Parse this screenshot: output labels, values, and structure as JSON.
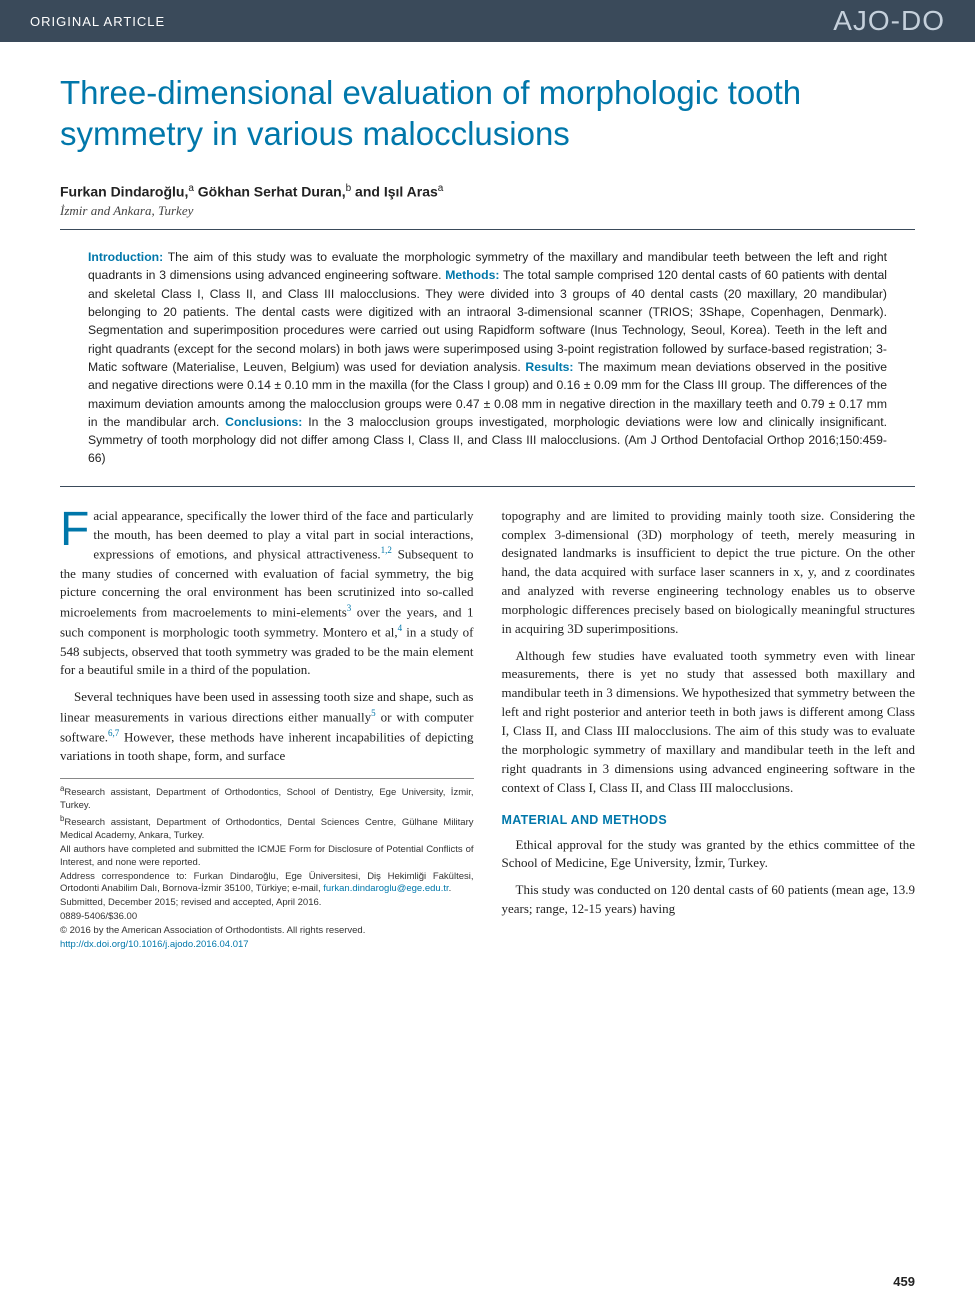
{
  "colors": {
    "topbar_bg": "#3a4a5a",
    "accent": "#0077aa",
    "logo_text": "#c5d0db",
    "body_text": "#222222",
    "background": "#ffffff"
  },
  "typography": {
    "title_fontsize": 33,
    "body_fontsize": 13,
    "abstract_fontsize": 12.2,
    "footnote_fontsize": 9.5,
    "dropcap_fontsize": 48
  },
  "header": {
    "article_type": "ORIGINAL ARTICLE",
    "journal_logo": "AJO-DO"
  },
  "title": "Three-dimensional evaluation of morphologic tooth symmetry in various malocclusions",
  "authors_html": "Furkan Dindaroğlu,<sup>a</sup> Gökhan Serhat Duran,<sup>b</sup> and Işıl Aras<sup>a</sup>",
  "affiliation_line": "İzmir and Ankara, Turkey",
  "abstract": {
    "intro_label": "Introduction:",
    "intro": "The aim of this study was to evaluate the morphologic symmetry of the maxillary and mandibular teeth between the left and right quadrants in 3 dimensions using advanced engineering software.",
    "methods_label": "Methods:",
    "methods": "The total sample comprised 120 dental casts of 60 patients with dental and skeletal Class I, Class II, and Class III malocclusions. They were divided into 3 groups of 40 dental casts (20 maxillary, 20 mandibular) belonging to 20 patients. The dental casts were digitized with an intraoral 3-dimensional scanner (TRIOS; 3Shape, Copenhagen, Denmark). Segmentation and superimposition procedures were carried out using Rapidform software (Inus Technology, Seoul, Korea). Teeth in the left and right quadrants (except for the second molars) in both jaws were superimposed using 3-point registration followed by surface-based registration; 3-Matic software (Materialise, Leuven, Belgium) was used for deviation analysis.",
    "results_label": "Results:",
    "results": "The maximum mean deviations observed in the positive and negative directions were 0.14 ± 0.10 mm in the maxilla (for the Class I group) and 0.16 ± 0.09 mm for the Class III group. The differences of the maximum deviation amounts among the malocclusion groups were 0.47 ± 0.08 mm in negative direction in the maxillary teeth and 0.79 ± 0.17 mm in the mandibular arch.",
    "conclusions_label": "Conclusions:",
    "conclusions": "In the 3 malocclusion groups investigated, morphologic deviations were low and clinically insignificant. Symmetry of tooth morphology did not differ among Class I, Class II, and Class III malocclusions. (Am J Orthod Dentofacial Orthop 2016;150:459-66)"
  },
  "body": {
    "left": {
      "p1_dropcap": "F",
      "p1_rest": "acial appearance, specifically the lower third of the face and particularly the mouth, has been deemed to play a vital part in social interactions, expressions of emotions, and physical attractiveness.",
      "p1_ref": "1,2",
      "p1_tail": " Subsequent to the many studies of concerned with evaluation of facial symmetry, the big picture concerning the oral environment has been scrutinized into so-called microelements from macroelements to mini-elements",
      "p1_ref2": "3",
      "p1_tail2": " over the years, and 1 such component is morphologic tooth symmetry. Montero et al,",
      "p1_ref3": "4",
      "p1_tail3": " in a study of 548 subjects, observed that tooth symmetry was graded to be the main element for a beautiful smile in a third of the population.",
      "p2": "Several techniques have been used in assessing tooth size and shape, such as linear measurements in various directions either manually",
      "p2_ref": "5",
      "p2_mid": " or with computer software.",
      "p2_ref2": "6,7",
      "p2_tail": " However, these methods have inherent incapabilities of depicting variations in tooth shape, form, and surface"
    },
    "right": {
      "p1": "topography and are limited to providing mainly tooth size. Considering the complex 3-dimensional (3D) morphology of teeth, merely measuring in designated landmarks is insufficient to depict the true picture. On the other hand, the data acquired with surface laser scanners in x, y, and z coordinates and analyzed with reverse engineering technology enables us to observe morphologic differences precisely based on biologically meaningful structures in acquiring 3D superimpositions.",
      "p2": "Although few studies have evaluated tooth symmetry even with linear measurements, there is yet no study that assessed both maxillary and mandibular teeth in 3 dimensions. We hypothesized that symmetry between the left and right posterior and anterior teeth in both jaws is different among Class I, Class II, and Class III malocclusions. The aim of this study was to evaluate the morphologic symmetry of maxillary and mandibular teeth in the left and right quadrants in 3 dimensions using advanced engineering software in the context of Class I, Class II, and Class III malocclusions.",
      "section_head": "MATERIAL AND METHODS",
      "p3": "Ethical approval for the study was granted by the ethics committee of the School of Medicine, Ege University, İzmir, Turkey.",
      "p4": "This study was conducted on 120 dental casts of 60 patients (mean age, 13.9 years; range, 12-15 years) having"
    }
  },
  "footnotes": {
    "f1": "Research assistant, Department of Orthodontics, School of Dentistry, Ege University, İzmir, Turkey.",
    "f1_sup": "a",
    "f2": "Research assistant, Department of Orthodontics, Dental Sciences Centre, Gülhane Military Medical Academy, Ankara, Turkey.",
    "f2_sup": "b",
    "f3": "All authors have completed and submitted the ICMJE Form for Disclosure of Potential Conflicts of Interest, and none were reported.",
    "f4": "Address correspondence to: Furkan Dindaroğlu, Ege Üniversitesi, Diş Hekimliği Fakültesi, Ortodonti Anabilim Dalı, Bornova-İzmir 35100, Türkiye; e-mail,",
    "f4_email": "furkan.dindaroglu@ege.edu.tr",
    "f5": "Submitted, December 2015; revised and accepted, April 2016.",
    "f6": "0889-5406/$36.00",
    "f7": "© 2016 by the American Association of Orthodontists. All rights reserved.",
    "f8_doi": "http://dx.doi.org/10.1016/j.ajodo.2016.04.017"
  },
  "page_number": "459"
}
